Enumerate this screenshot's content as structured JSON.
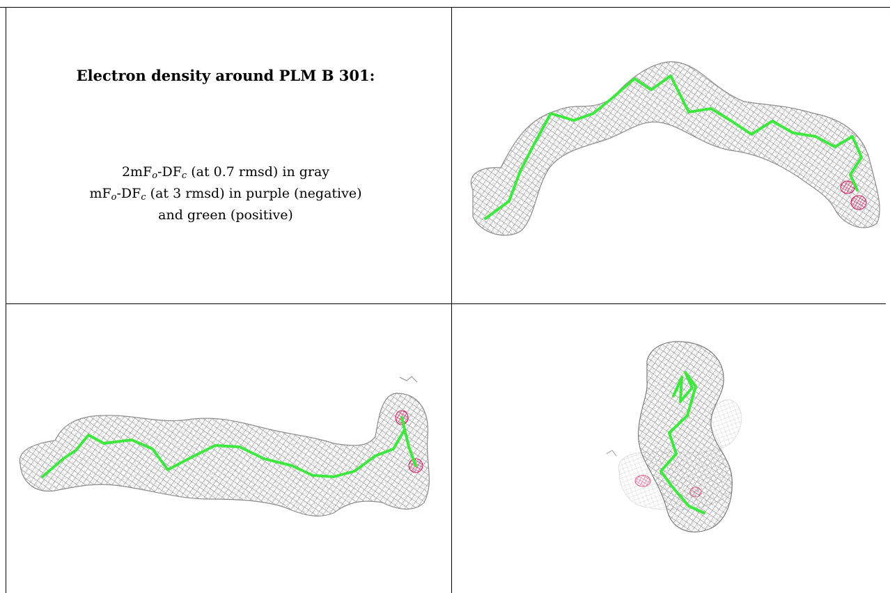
{
  "caption": {
    "title": "Electron density around PLM B 301:",
    "map_2fofc": {
      "pre": "2mF",
      "sub1": "o",
      "mid": "-DF",
      "sub2": "c",
      "post": " (at 0.7 rmsd) in gray"
    },
    "map_fofc": {
      "pre": "mF",
      "sub1": "o",
      "mid": "-DF",
      "sub2": "c",
      "post": " (at 3 rmsd) in purple (negative)"
    },
    "map_fofc_cont": "and green (positive)"
  },
  "views": [
    {
      "name": "view-top-right",
      "ligand": "PLM B 301"
    },
    {
      "name": "view-bottom-left",
      "ligand": "PLM B 301"
    },
    {
      "name": "view-bottom-right",
      "ligand": "PLM B 301"
    }
  ],
  "colors": {
    "mesh_2fofc": "#8a8a8a",
    "mesh_negative": "#d4145a",
    "model_stick": "#3ee83e",
    "border": "#000000",
    "background": "#ffffff"
  }
}
